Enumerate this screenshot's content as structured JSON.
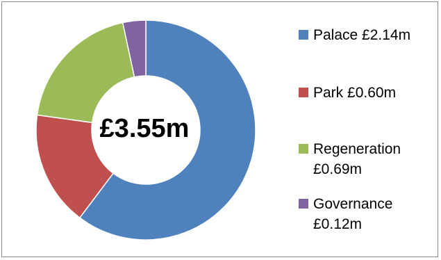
{
  "chart_data": {
    "type": "pie",
    "subtype": "donut",
    "center_label": "£3.55m",
    "categories": [
      "Palace",
      "Park",
      "Regeneration",
      "Governance"
    ],
    "values": [
      2.14,
      0.6,
      0.69,
      0.12
    ],
    "unit": "£m",
    "legend_labels": [
      "Palace £2.14m",
      "Park £0.60m",
      "Regeneration £0.69m",
      "Governance £0.12m"
    ],
    "colors": [
      "#4f81bd",
      "#c0504d",
      "#9bbb59",
      "#8064a2"
    ],
    "legend_position": "right"
  }
}
